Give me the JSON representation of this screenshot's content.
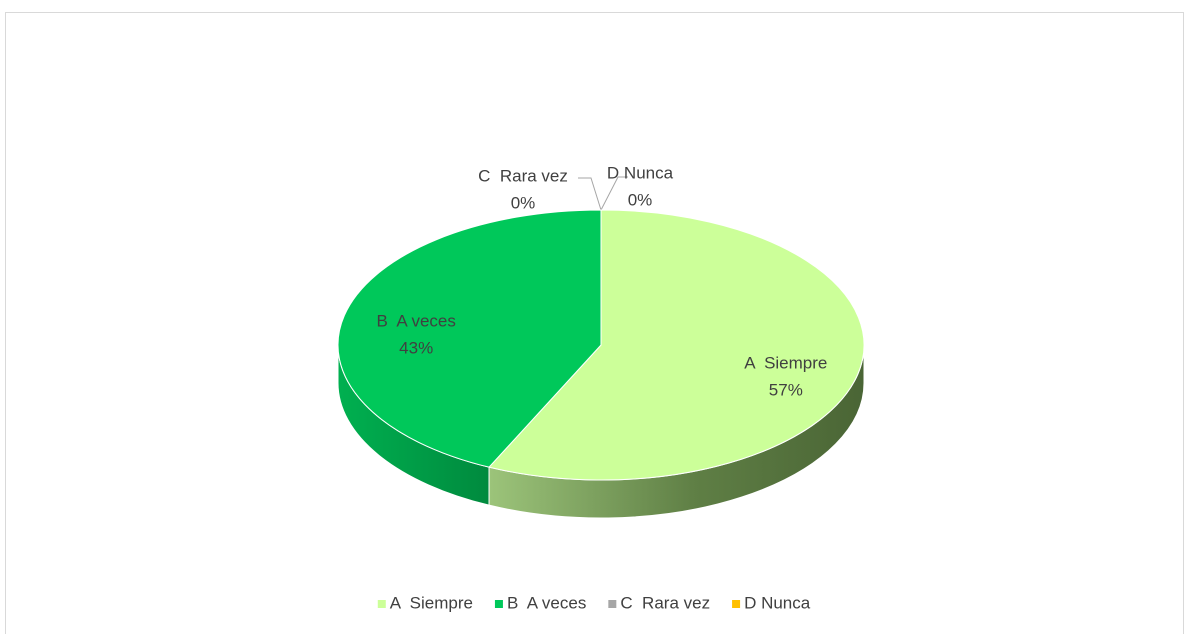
{
  "chart_data": {
    "type": "pie",
    "categories": [
      "A  Siempre",
      "B  A veces",
      "C  Rara vez",
      "D Nunca"
    ],
    "values": [
      57,
      43,
      0,
      0
    ],
    "value_labels": [
      "57%",
      "43%",
      "0%",
      "0%"
    ],
    "colors": [
      "#ccff99",
      "#00c85a",
      "#a6a6a6",
      "#ffc000"
    ],
    "legend": "bottom"
  }
}
